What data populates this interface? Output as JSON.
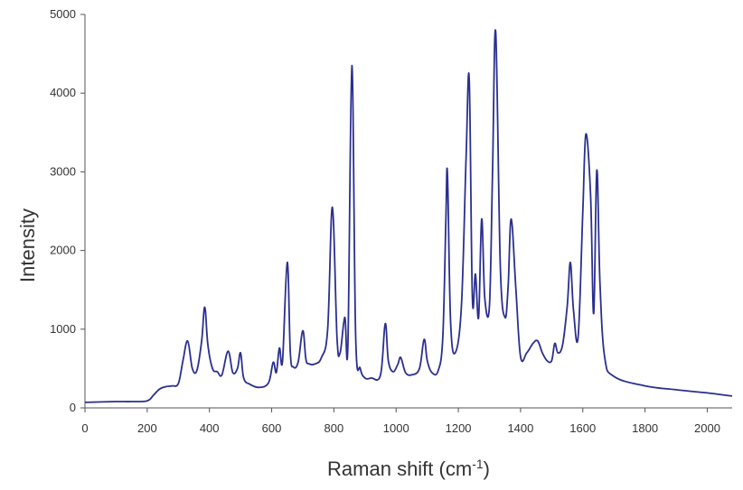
{
  "colors": {
    "line": "#2b2f8f",
    "axis": "#555555",
    "text": "#333333",
    "background": "#ffffff"
  },
  "chart_data": {
    "type": "line",
    "title": "",
    "xlabel": "Raman shift (cm",
    "xlabel_sup": "-1",
    "xlabel_suffix": ")",
    "ylabel": "Intensity",
    "xlim": [
      0,
      2080
    ],
    "ylim": [
      0,
      5000
    ],
    "xticks": [
      0,
      200,
      400,
      600,
      800,
      1000,
      1200,
      1400,
      1600,
      1800,
      2000
    ],
    "yticks": [
      0,
      1000,
      2000,
      3000,
      4000,
      5000
    ],
    "grid": false,
    "legend": "none",
    "series": [
      {
        "x": [
          0,
          100,
          150,
          200,
          220,
          240,
          260,
          280,
          300,
          315,
          330,
          345,
          360,
          375,
          385,
          395,
          410,
          425,
          440,
          460,
          475,
          490,
          500,
          510,
          530,
          560,
          590,
          605,
          615,
          625,
          635,
          650,
          660,
          670,
          685,
          700,
          710,
          720,
          740,
          760,
          780,
          795,
          810,
          820,
          835,
          845,
          858,
          870,
          885,
          900,
          920,
          950,
          965,
          975,
          990,
          1005,
          1015,
          1030,
          1050,
          1075,
          1090,
          1100,
          1115,
          1135,
          1150,
          1160,
          1165,
          1175,
          1190,
          1210,
          1225,
          1235,
          1245,
          1255,
          1265,
          1275,
          1285,
          1300,
          1310,
          1320,
          1335,
          1350,
          1360,
          1370,
          1385,
          1400,
          1420,
          1440,
          1455,
          1470,
          1485,
          1500,
          1510,
          1520,
          1535,
          1550,
          1560,
          1570,
          1585,
          1600,
          1610,
          1625,
          1635,
          1645,
          1655,
          1670,
          1700,
          1800,
          1900,
          2000,
          2080
        ],
        "y": [
          70,
          80,
          80,
          90,
          160,
          240,
          270,
          280,
          310,
          600,
          850,
          500,
          480,
          850,
          1280,
          800,
          500,
          460,
          420,
          720,
          450,
          500,
          700,
          380,
          300,
          260,
          320,
          580,
          450,
          760,
          600,
          1850,
          700,
          520,
          580,
          980,
          620,
          560,
          560,
          640,
          1000,
          2550,
          900,
          700,
          1150,
          800,
          4350,
          900,
          500,
          380,
          380,
          420,
          1070,
          600,
          460,
          550,
          640,
          450,
          420,
          500,
          870,
          600,
          450,
          470,
          900,
          2400,
          2980,
          1100,
          700,
          1300,
          3200,
          4180,
          1400,
          1700,
          1150,
          2400,
          1400,
          1300,
          3000,
          4780,
          1800,
          1150,
          1550,
          2400,
          1500,
          650,
          700,
          820,
          850,
          700,
          600,
          600,
          820,
          700,
          800,
          1300,
          1850,
          1250,
          900,
          2500,
          3480,
          2700,
          1200,
          3020,
          1600,
          650,
          400,
          280,
          230,
          190,
          150
        ]
      }
    ]
  }
}
